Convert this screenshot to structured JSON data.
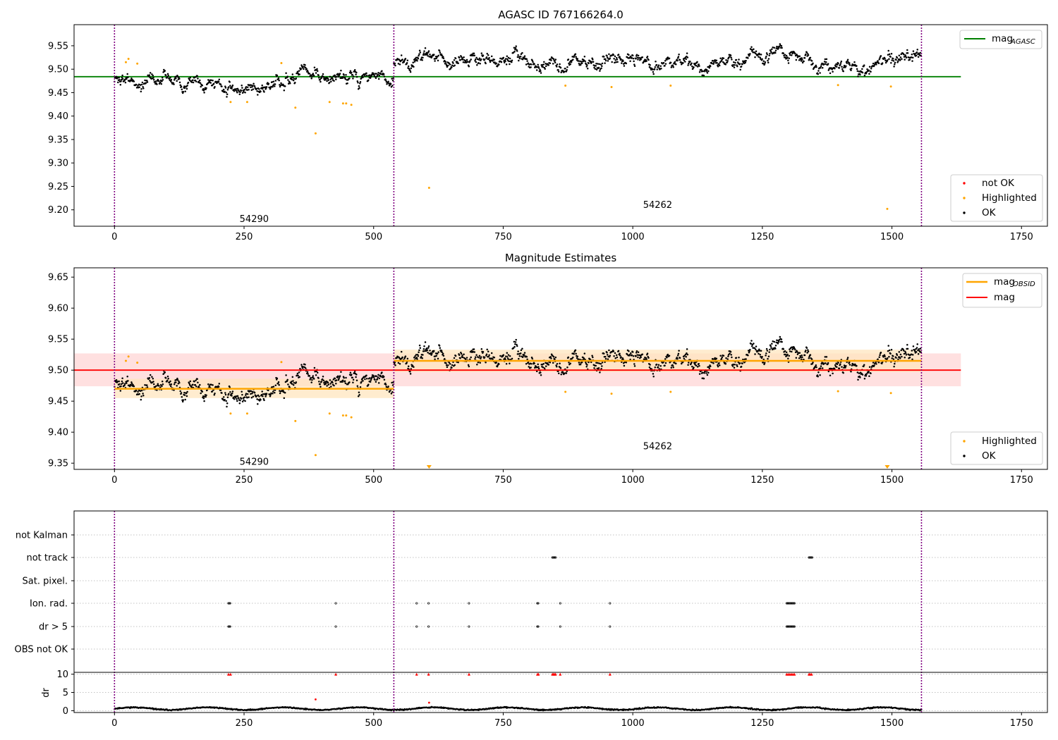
{
  "colors": {
    "ok": "#000000",
    "highlighted": "#ffa500",
    "not_ok": "#ff0000",
    "mag_agasc": "#008000",
    "mag_obsid": "#ffa500",
    "mag": "#ff0000",
    "band_mag": "#ffcccc",
    "band_obsid": "#ffe5bf",
    "obs_boundary": "#800080",
    "grid": "#b0b0b0"
  },
  "chart_data": [
    {
      "type": "scatter",
      "title": "AGASC ID 767166264.0",
      "xlim": [
        -78,
        1800
      ],
      "ylim": [
        9.165,
        9.595
      ],
      "xticks": [
        "0",
        "250",
        "500",
        "750",
        "1000",
        "1250",
        "1500",
        "1750"
      ],
      "yticks": [
        "9.20",
        "9.25",
        "9.30",
        "9.35",
        "9.40",
        "9.45",
        "9.50",
        "9.55"
      ],
      "obs_boundaries": [
        0,
        539,
        1557
      ],
      "observations": [
        {
          "obsid": "54290",
          "x_start": 0,
          "x_end": 539,
          "y_label": 9.18
        },
        {
          "obsid": "54262",
          "x_start": 539,
          "x_end": 1557,
          "y_label": 9.21
        }
      ],
      "lines": [
        {
          "name": "mag_AGASC",
          "y": 9.484,
          "x_range": [
            -78,
            1633
          ],
          "color": "#008000"
        }
      ],
      "highlighted_points": [
        [
          22,
          9.515
        ],
        [
          27,
          9.522
        ],
        [
          44,
          9.512
        ],
        [
          224,
          9.43
        ],
        [
          256,
          9.43
        ],
        [
          322,
          9.513
        ],
        [
          349,
          9.418
        ],
        [
          388,
          9.363
        ],
        [
          415,
          9.43
        ],
        [
          441,
          9.427
        ],
        [
          447,
          9.427
        ],
        [
          457,
          9.424
        ],
        [
          607,
          9.247
        ],
        [
          870,
          9.465
        ],
        [
          959,
          9.462
        ],
        [
          1073,
          9.465
        ],
        [
          1396,
          9.466
        ],
        [
          1491,
          9.202
        ],
        [
          1498,
          9.463
        ]
      ],
      "legend": {
        "lines": [
          {
            "label": "mag",
            "subscript": "AGASC"
          }
        ],
        "points": [
          {
            "label": "not OK"
          },
          {
            "label": "Highlighted"
          },
          {
            "label": "OK"
          }
        ],
        "position": "right"
      }
    },
    {
      "type": "scatter",
      "title": "Magnitude Estimates",
      "xlim": [
        -78,
        1800
      ],
      "ylim": [
        9.34,
        9.665
      ],
      "xticks": [
        "0",
        "250",
        "500",
        "750",
        "1000",
        "1250",
        "1500",
        "1750"
      ],
      "yticks": [
        "9.35",
        "9.40",
        "9.45",
        "9.50",
        "9.55",
        "9.60",
        "9.65"
      ],
      "obs_boundaries": [
        0,
        539,
        1557
      ],
      "observations": [
        {
          "obsid": "54290",
          "x_start": 0,
          "x_end": 539,
          "y_label": 9.352
        },
        {
          "obsid": "54262",
          "x_start": 539,
          "x_end": 1557,
          "y_label": 9.377
        }
      ],
      "mag": {
        "value": 9.5,
        "band": [
          9.474,
          9.527
        ],
        "x_range": [
          -78,
          1633
        ]
      },
      "mag_obsid": [
        {
          "x_range": [
            0,
            539
          ],
          "value": 9.47,
          "band": [
            9.455,
            9.486
          ]
        },
        {
          "x_range": [
            539,
            1557
          ],
          "value": 9.515,
          "band": [
            9.497,
            9.533
          ]
        }
      ],
      "offscale_markers": [
        607,
        1491
      ],
      "legend": {
        "lines": [
          {
            "label": "mag",
            "subscript": "OBSID"
          },
          {
            "label": "mag"
          }
        ],
        "points": [
          {
            "label": "Highlighted"
          },
          {
            "label": "OK"
          }
        ],
        "position": "right"
      }
    },
    {
      "type": "scatter",
      "title": "",
      "xlim": [
        -78,
        1800
      ],
      "xticks": [
        "0",
        "250",
        "500",
        "750",
        "1000",
        "1250",
        "1500",
        "1750"
      ],
      "flag_rows": [
        "not Kalman",
        "not track",
        "Sat. pixel.",
        "Ion. rad.",
        "dr > 5",
        "OBS not OK"
      ],
      "flags": {
        "not track": [
          [
            845,
            852
          ],
          [
            1340,
            1347
          ]
        ],
        "Ion. rad.": [
          [
            220,
            224
          ],
          [
            427,
            427
          ],
          [
            583,
            583
          ],
          [
            606,
            606
          ],
          [
            684,
            684
          ],
          [
            816,
            818
          ],
          [
            860,
            860
          ],
          [
            956,
            956
          ],
          [
            1297,
            1313
          ]
        ],
        "dr > 5": [
          [
            220,
            224
          ],
          [
            427,
            427
          ],
          [
            583,
            583
          ],
          [
            606,
            606
          ],
          [
            684,
            684
          ],
          [
            816,
            818
          ],
          [
            860,
            860
          ],
          [
            956,
            956
          ],
          [
            1297,
            1313
          ]
        ]
      },
      "dr": {
        "yticks": [
          "0",
          "5",
          "10"
        ],
        "ylabel": "dr",
        "ylim": [
          -0.5,
          10.5
        ],
        "clipped_at_10": [
          220,
          224,
          427,
          583,
          606,
          684,
          816,
          818,
          845,
          847,
          849,
          851,
          860,
          956,
          1297,
          1300,
          1303,
          1306,
          1309,
          1312,
          1340,
          1342,
          1345
        ],
        "outliers": [
          [
            388,
            3.1
          ],
          [
            607,
            2.2
          ]
        ]
      }
    }
  ]
}
